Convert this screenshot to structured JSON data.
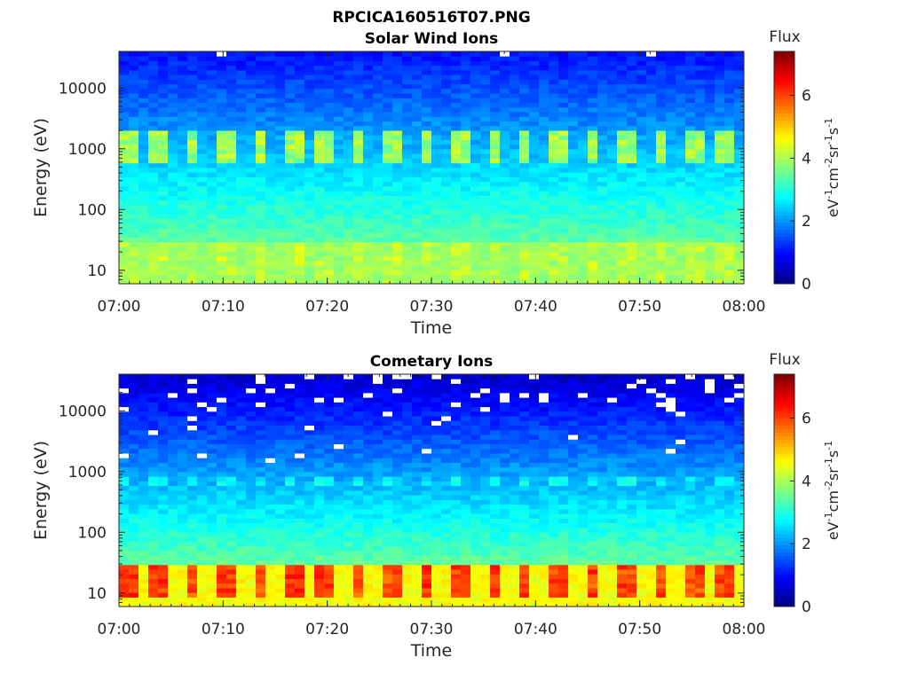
{
  "figure_title": "RPCICA160516T07.PNG",
  "colors": {
    "colormap": "jet",
    "axis": "#262626",
    "background": "#ffffff"
  },
  "chart_data": [
    {
      "type": "heatmap",
      "title": "Solar Wind Ions",
      "xlabel": "Time",
      "ylabel": "Energy (eV)",
      "x_ticks": [
        "07:00",
        "07:10",
        "07:20",
        "07:30",
        "07:40",
        "07:50",
        "08:00"
      ],
      "x_range": [
        "07:00",
        "08:00"
      ],
      "y_scale": "log",
      "y_range": [
        6,
        40000
      ],
      "y_ticks": [
        {
          "value": 10,
          "label": "10"
        },
        {
          "value": 100,
          "label": "100"
        },
        {
          "value": 1000,
          "label": "1000"
        },
        {
          "value": 10000,
          "label": "10000"
        }
      ],
      "colorbar": {
        "title": "Flux",
        "label": "eV-1cm-2sr-1s-1",
        "range": [
          0,
          7.4
        ],
        "ticks": [
          0,
          2,
          4,
          6
        ]
      },
      "rows": 50,
      "cols": 64,
      "grid": false,
      "bands": [
        {
          "energy_range": [
            8,
            28
          ],
          "flux": 3.9,
          "description": "low-energy band"
        },
        {
          "energy_range": [
            600,
            1900
          ],
          "flux": 3.7,
          "description": "periodic band near 1000 eV"
        },
        {
          "energy_range": [
            3000,
            40000
          ],
          "flux": 1.2,
          "description": "high-energy background"
        }
      ],
      "periodic_pulses": {
        "interval_min": 3.2,
        "energy_range": [
          600,
          1900
        ],
        "peak_flux": 4.2
      },
      "white_gaps": [
        {
          "time": "07:10",
          "energy": 30000
        },
        {
          "time": "07:40",
          "energy": 30000
        },
        {
          "time": "07:55",
          "energy": 22000
        }
      ]
    },
    {
      "type": "heatmap",
      "title": "Cometary Ions",
      "xlabel": "Time",
      "ylabel": "Energy (eV)",
      "x_ticks": [
        "07:00",
        "07:10",
        "07:20",
        "07:30",
        "07:40",
        "07:50",
        "08:00"
      ],
      "x_range": [
        "07:00",
        "08:00"
      ],
      "y_scale": "log",
      "y_range": [
        6,
        40000
      ],
      "y_ticks": [
        {
          "value": 10,
          "label": "10"
        },
        {
          "value": 100,
          "label": "100"
        },
        {
          "value": 1000,
          "label": "1000"
        },
        {
          "value": 10000,
          "label": "10000"
        }
      ],
      "colorbar": {
        "title": "Flux",
        "label": "eV-1cm-2sr-1s-1",
        "range": [
          0,
          7.4
        ],
        "ticks": [
          0,
          2,
          4,
          6
        ]
      },
      "rows": 50,
      "cols": 64,
      "grid": false,
      "bands": [
        {
          "energy_range": [
            8,
            28
          ],
          "flux": 5.3,
          "description": "low-energy band"
        },
        {
          "energy_range": [
            600,
            900
          ],
          "flux": 2.8,
          "description": "periodic band near 700 eV"
        },
        {
          "energy_range": [
            3000,
            40000
          ],
          "flux": 0.8,
          "description": "high-energy background with data gaps"
        }
      ],
      "periodic_pulses": {
        "interval_min": 3.2,
        "energy_range": [
          8,
          28
        ],
        "peak_flux": 6.3
      },
      "white_gaps": "scattered above 10000 eV"
    }
  ]
}
